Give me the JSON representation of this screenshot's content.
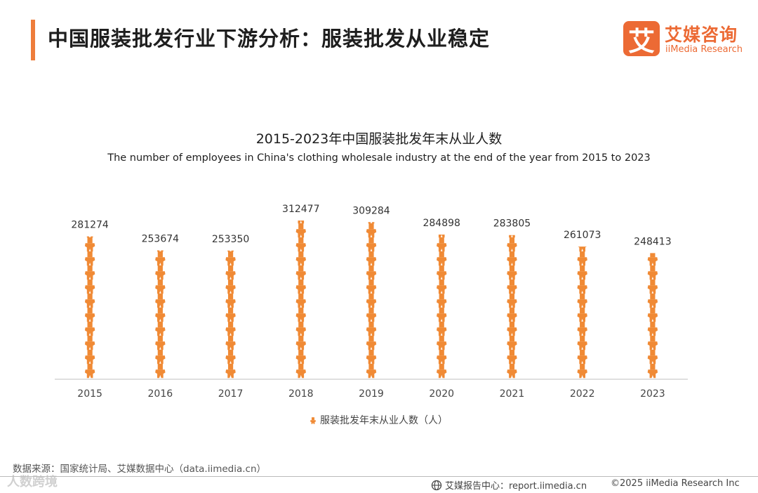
{
  "page": {
    "title": "中国服装批发行业下游分析：服装批发从业稳定"
  },
  "logo": {
    "badge": "艾",
    "name_cn": "艾媒咨询",
    "name_en": "iiMedia Research"
  },
  "chart_data": {
    "type": "bar",
    "title": "2015-2023年中国服装批发年末从业人数",
    "subtitle": "The number of employees in China's clothing wholesale industry at the end of the year from 2015 to 2023",
    "categories": [
      "2015",
      "2016",
      "2017",
      "2018",
      "2019",
      "2020",
      "2021",
      "2022",
      "2023"
    ],
    "series": [
      {
        "name": "服装批发年末从业人数（人）",
        "values": [
          281274,
          253674,
          253350,
          312477,
          309284,
          284898,
          283805,
          261073,
          248413
        ]
      }
    ],
    "ylim": [
      0,
      312477
    ],
    "grid": false,
    "legend_position": "bottom",
    "data_labels": true,
    "mark_style": "stacked-person-icons"
  },
  "colors": {
    "accent": "#ee7d3b",
    "bar": "#f08a35",
    "axis": "#bfbfbf"
  },
  "source": "数据来源：国家统计局、艾媒数据中心（data.iimedia.cn）",
  "footer": {
    "report_site": "艾媒报告中心：report.iimedia.cn",
    "copyright": "©2025  iiMedia Research  Inc"
  },
  "watermark": "人数跨境"
}
